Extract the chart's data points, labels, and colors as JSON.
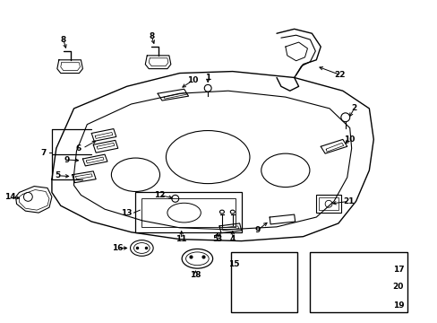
{
  "bg_color": "#ffffff",
  "fig_width": 4.89,
  "fig_height": 3.6,
  "dpi": 100,
  "line_color": "#000000",
  "line_width": 0.7,
  "font_size": 6.5,
  "font_weight": "bold",
  "img_extent": [
    0,
    489,
    0,
    360
  ]
}
